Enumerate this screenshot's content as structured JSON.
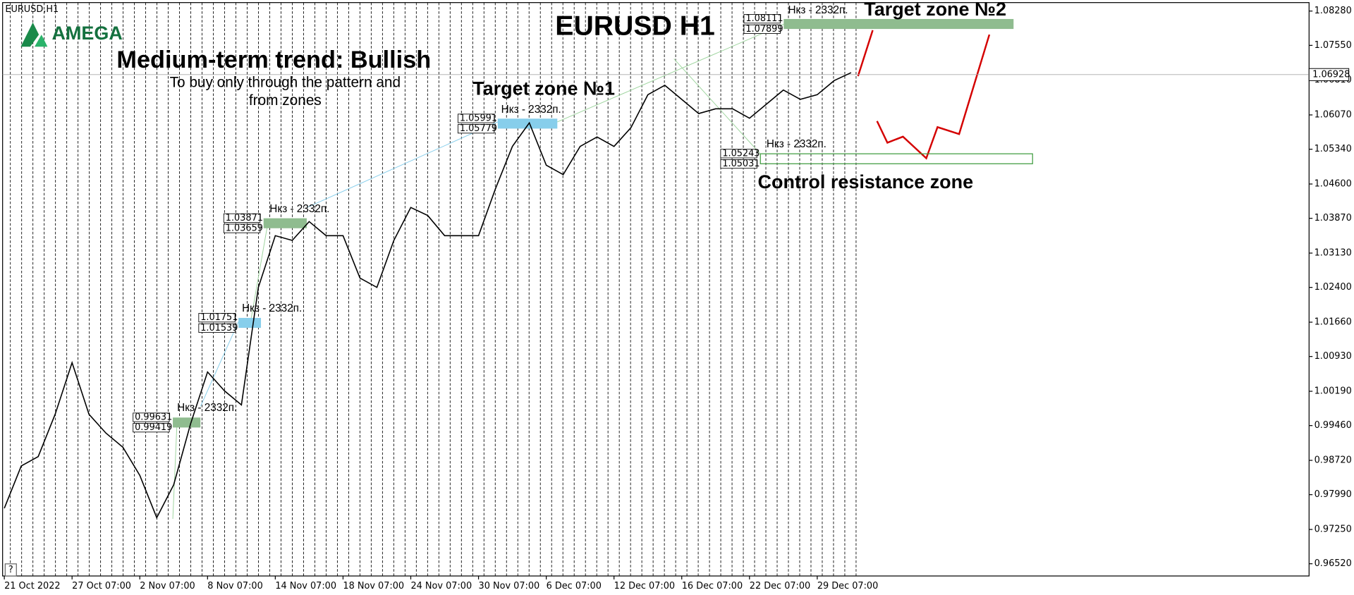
{
  "header": {
    "symbol": "EURUSD,H1",
    "logo": "AMEGA",
    "help": "?"
  },
  "chart_data": {
    "type": "line",
    "title": "EURUSD H1",
    "subtitle": "Medium-term trend: Bullish",
    "annotations": [
      "To buy only through the pattern  and",
      "from zones"
    ],
    "categories": [
      "21 Oct 2022",
      null,
      null,
      null,
      "27 Oct 07:00",
      null,
      null,
      null,
      "2 Nov 07:00",
      null,
      null,
      null,
      "8 Nov 07:00",
      null,
      null,
      null,
      "14 Nov 07:00",
      null,
      null,
      null,
      "18 Nov 07:00",
      null,
      null,
      null,
      "24 Nov 07:00",
      null,
      null,
      null,
      "30 Nov 07:00",
      null,
      null,
      null,
      "6 Dec 07:00",
      null,
      null,
      null,
      "12 Dec 07:00",
      null,
      null,
      null,
      "16 Dec 07:00",
      null,
      null,
      null,
      "22 Dec 07:00",
      null,
      null,
      null,
      "29 Dec 07:00",
      null,
      null
    ],
    "values": [
      0.977,
      0.986,
      0.988,
      0.997,
      1.008,
      0.997,
      0.993,
      0.99,
      0.984,
      0.975,
      0.982,
      0.995,
      1.006,
      1.002,
      0.999,
      1.024,
      1.035,
      1.034,
      1.038,
      1.035,
      1.035,
      1.026,
      1.024,
      1.034,
      1.041,
      1.0393,
      1.035,
      1.035,
      1.035,
      1.045,
      1.054,
      1.059,
      1.05,
      1.048,
      1.054,
      1.056,
      1.054,
      1.058,
      1.065,
      1.067,
      1.064,
      1.061,
      1.062,
      1.062,
      1.06,
      1.063,
      1.066,
      1.064,
      1.065,
      1.068,
      1.0697
    ],
    "color": "#000000",
    "ylim": [
      0.9626,
      1.0846
    ],
    "yticks": [
      {
        "value": 1.0828,
        "label": "1.08280"
      },
      {
        "value": 1.0755,
        "label": "1.07550"
      },
      {
        "value": 1.0681,
        "label": "1.06810"
      },
      {
        "value": 1.0607,
        "label": "1.06070"
      },
      {
        "value": 1.0534,
        "label": "1.05340"
      },
      {
        "value": 1.046,
        "label": "1.04600"
      },
      {
        "value": 1.0387,
        "label": "1.03870"
      },
      {
        "value": 1.0313,
        "label": "1.03130"
      },
      {
        "value": 1.024,
        "label": "1.02400"
      },
      {
        "value": 1.0166,
        "label": "1.01660"
      },
      {
        "value": 1.0093,
        "label": "1.00930"
      },
      {
        "value": 1.0019,
        "label": "1.00190"
      },
      {
        "value": 0.9946,
        "label": "0.99460"
      },
      {
        "value": 0.9872,
        "label": "0.98720"
      },
      {
        "value": 0.9799,
        "label": "0.97990"
      },
      {
        "value": 0.9725,
        "label": "0.97250"
      },
      {
        "value": 0.9652,
        "label": "0.96520"
      }
    ],
    "current_price": 1.06928,
    "zones": [
      {
        "high": 0.99631,
        "low": 0.99419,
        "note": "Нкз - 2332п.",
        "color": "#8fbc8f"
      },
      {
        "high": 1.01751,
        "low": 1.01539,
        "note": "Нкз - 2332п.",
        "color": "#87ceeb"
      },
      {
        "high": 1.03871,
        "low": 1.03659,
        "note": "Нкз - 2332п.",
        "color": "#8fbc8f"
      },
      {
        "high": 1.05991,
        "low": 1.05779,
        "note": "Нкз - 2332п.",
        "color": "#87ceeb",
        "title": "Target zone №1"
      },
      {
        "high": 1.08111,
        "low": 1.07899,
        "note": "Нкз - 2332п.",
        "color": "#8fbc8f",
        "title": "Target zone №2"
      },
      {
        "high": 1.05243,
        "low": 1.05031,
        "note": "Нкз - 2332п.",
        "color": "none",
        "title": "Control resistance zone"
      }
    ]
  }
}
